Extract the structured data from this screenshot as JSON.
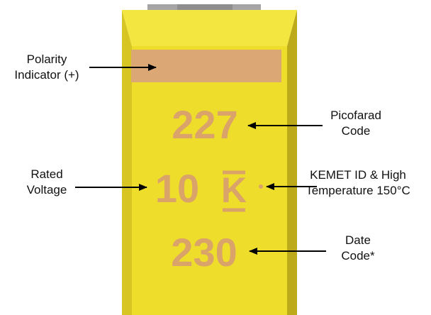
{
  "colors": {
    "body_front": "#eedd2b",
    "body_top": "#f4e640",
    "body_side_left": "#d7c524",
    "body_side_right": "#bcaa1a",
    "terminal": "#a5a5a5",
    "polarity_band": "#dba774",
    "marking_text": "#d9a36a",
    "arrow": "#000000",
    "label_text": "#111111"
  },
  "component": {
    "capacitance_code": "227",
    "voltage_code": "10",
    "id_letter": "K",
    "date_code": "230"
  },
  "callouts": {
    "polarity": {
      "line1": "Polarity",
      "line2": "Indicator (+)"
    },
    "picofarad": {
      "line1": "Picofarad",
      "line2": "Code"
    },
    "voltage": {
      "line1": "Rated",
      "line2": "Voltage"
    },
    "kemet": {
      "line1": "KEMET ID & High",
      "line2": "Temperature 150°C"
    },
    "date": {
      "line1": "Date",
      "line2": "Code*"
    }
  }
}
